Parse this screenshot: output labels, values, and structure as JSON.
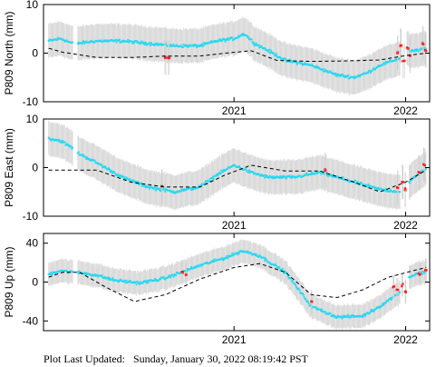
{
  "footer": {
    "label": "Plot Last Updated:",
    "timestamp": "Sunday, January 30, 2022 08:19:42 PST"
  },
  "colors": {
    "clean_points": "#29d8f0",
    "flagged_points": "#ff1a1a",
    "error_bars": "#cfcfcf",
    "model_line": "#000000"
  },
  "chart_data": [
    {
      "type": "scatter",
      "ylabel": "P809 North (mm)",
      "xlim": [
        2019.89,
        2022.14
      ],
      "ylim": [
        -10,
        10
      ],
      "yticks": [
        10,
        0,
        -10
      ],
      "xticks": [
        {
          "value": 2021.0,
          "label": "2021"
        },
        {
          "value": 2022.0,
          "label": "2022"
        }
      ],
      "grid": false,
      "error_bar_half_height": 3.5,
      "series": [
        {
          "kind": "points",
          "color": "clean",
          "segments": [
            {
              "x_start": 2019.92,
              "x_end": 2020.06,
              "x": [
                2019.92,
                2019.99,
                2020.06
              ],
              "y": [
                2.5,
                3.0,
                2.0
              ]
            },
            {
              "x_start": 2020.09,
              "x_end": 2021.97,
              "x": [
                2020.09,
                2020.2,
                2020.35,
                2020.5,
                2020.65,
                2020.8,
                2020.9,
                2021.0,
                2021.06,
                2021.12,
                2021.2,
                2021.3,
                2021.45,
                2021.6,
                2021.7,
                2021.78,
                2021.85,
                2021.97
              ],
              "y": [
                2.0,
                2.5,
                2.5,
                2.0,
                1.5,
                1.5,
                2.5,
                3.0,
                4.0,
                2.0,
                0.5,
                -1.5,
                -2.5,
                -4.5,
                -5.0,
                -4.0,
                -2.5,
                -1.0
              ]
            },
            {
              "x_start": 2022.02,
              "x_end": 2022.12,
              "x": [
                2022.02,
                2022.07,
                2022.12
              ],
              "y": [
                0.5,
                0.5,
                1.0
              ]
            }
          ]
        },
        {
          "kind": "points",
          "color": "flagged",
          "points": [
            {
              "x": 2020.6,
              "y": -0.8
            },
            {
              "x": 2020.62,
              "y": -1.0
            },
            {
              "x": 2021.95,
              "y": 0.0
            },
            {
              "x": 2021.97,
              "y": 1.5
            },
            {
              "x": 2021.99,
              "y": -1.5
            },
            {
              "x": 2022.01,
              "y": 1.0
            },
            {
              "x": 2022.03,
              "y": -0.5
            },
            {
              "x": 2022.1,
              "y": 2.0
            },
            {
              "x": 2022.12,
              "y": 0.5
            }
          ]
        },
        {
          "kind": "model",
          "style": "dashed",
          "x": [
            2019.92,
            2020.0,
            2020.2,
            2020.4,
            2020.6,
            2020.8,
            2020.95,
            2021.1,
            2021.25,
            2021.45,
            2021.65,
            2021.85,
            2022.0,
            2022.12
          ],
          "y": [
            1.0,
            0.2,
            -0.9,
            -0.9,
            -0.6,
            -0.6,
            0.0,
            0.5,
            -1.5,
            -1.7,
            -1.6,
            -1.4,
            -0.5,
            0.0
          ]
        }
      ]
    },
    {
      "type": "scatter",
      "ylabel": "P809 East (mm)",
      "xlim": [
        2019.89,
        2022.14
      ],
      "ylim": [
        -10,
        10
      ],
      "yticks": [
        10,
        0,
        -10
      ],
      "xticks": [
        {
          "value": 2021.0,
          "label": "2021"
        },
        {
          "value": 2022.0,
          "label": "2022"
        }
      ],
      "grid": false,
      "error_bar_half_height": 3.5,
      "series": [
        {
          "kind": "points",
          "color": "clean",
          "segments": [
            {
              "x_start": 2019.92,
              "x_end": 2020.06,
              "x": [
                2019.92,
                2019.99,
                2020.06
              ],
              "y": [
                6.0,
                5.5,
                4.0
              ]
            },
            {
              "x_start": 2020.09,
              "x_end": 2021.97,
              "x": [
                2020.09,
                2020.2,
                2020.35,
                2020.5,
                2020.65,
                2020.8,
                2020.9,
                2021.0,
                2021.1,
                2021.2,
                2021.35,
                2021.5,
                2021.6,
                2021.7,
                2021.85,
                2021.97
              ],
              "y": [
                3.0,
                1.0,
                -2.0,
                -4.0,
                -5.0,
                -4.0,
                -1.5,
                0.5,
                -1.0,
                -2.0,
                -2.0,
                -1.0,
                -2.0,
                -3.0,
                -4.5,
                -5.0
              ]
            },
            {
              "x_start": 2022.02,
              "x_end": 2022.12,
              "x": [
                2022.02,
                2022.07,
                2022.12
              ],
              "y": [
                -3.0,
                -1.5,
                0.0
              ]
            }
          ]
        },
        {
          "kind": "points",
          "color": "flagged",
          "points": [
            {
              "x": 2020.58,
              "y": -3.8
            },
            {
              "x": 2021.53,
              "y": -0.5
            },
            {
              "x": 2021.95,
              "y": -4.2
            },
            {
              "x": 2021.98,
              "y": -3.0
            },
            {
              "x": 2022.0,
              "y": -4.5
            },
            {
              "x": 2022.08,
              "y": -1.0
            },
            {
              "x": 2022.11,
              "y": 0.5
            }
          ]
        },
        {
          "kind": "model",
          "style": "dashed",
          "x": [
            2019.92,
            2020.05,
            2020.2,
            2020.4,
            2020.6,
            2020.8,
            2020.95,
            2021.1,
            2021.3,
            2021.5,
            2021.7,
            2021.85,
            2022.0,
            2022.12
          ],
          "y": [
            -0.5,
            -0.5,
            -0.5,
            -3.0,
            -4.0,
            -4.0,
            -1.5,
            0.5,
            -0.7,
            -0.7,
            -3.0,
            -5.0,
            -3.0,
            -0.5
          ]
        }
      ]
    },
    {
      "type": "scatter",
      "ylabel": "P809 Up (mm)",
      "xlim": [
        2019.89,
        2022.14
      ],
      "ylim": [
        -50,
        50
      ],
      "yticks": [
        40,
        0,
        -40
      ],
      "xticks": [
        {
          "value": 2021.0,
          "label": "2021"
        },
        {
          "value": 2022.0,
          "label": "2022"
        }
      ],
      "grid": false,
      "error_bar_half_height": 12,
      "series": [
        {
          "kind": "points",
          "color": "clean",
          "segments": [
            {
              "x_start": 2019.92,
              "x_end": 2020.06,
              "x": [
                2019.92,
                2019.99,
                2020.06
              ],
              "y": [
                8.0,
                12.0,
                10.0
              ]
            },
            {
              "x_start": 2020.09,
              "x_end": 2021.97,
              "x": [
                2020.09,
                2020.2,
                2020.3,
                2020.45,
                2020.6,
                2020.8,
                2020.95,
                2021.05,
                2021.15,
                2021.3,
                2021.45,
                2021.6,
                2021.75,
                2021.85,
                2021.97
              ],
              "y": [
                10.0,
                7.0,
                2.0,
                -1.0,
                4.0,
                17.0,
                25.0,
                32.0,
                27.0,
                10.0,
                -25.0,
                -36.0,
                -35.0,
                -25.0,
                -10.0
              ]
            },
            {
              "x_start": 2022.02,
              "x_end": 2022.12,
              "x": [
                2022.02,
                2022.07,
                2022.12
              ],
              "y": [
                5.0,
                9.0,
                10.0
              ]
            }
          ]
        },
        {
          "kind": "points",
          "color": "flagged",
          "points": [
            {
              "x": 2020.7,
              "y": 10.0
            },
            {
              "x": 2020.72,
              "y": 8.0
            },
            {
              "x": 2021.45,
              "y": -20.0
            },
            {
              "x": 2021.93,
              "y": -5.0
            },
            {
              "x": 2021.95,
              "y": -8.0
            },
            {
              "x": 2021.98,
              "y": -3.0
            },
            {
              "x": 2022.0,
              "y": -10.0
            },
            {
              "x": 2022.08,
              "y": 8.0
            },
            {
              "x": 2022.12,
              "y": 12.0
            }
          ]
        },
        {
          "kind": "model",
          "style": "dashed",
          "x": [
            2019.92,
            2020.0,
            2020.1,
            2020.25,
            2020.42,
            2020.6,
            2020.8,
            2021.0,
            2021.15,
            2021.3,
            2021.45,
            2021.6,
            2021.75,
            2021.9,
            2022.05,
            2022.12
          ],
          "y": [
            5.0,
            10.0,
            10.0,
            -5.0,
            -20.0,
            -13.0,
            3.0,
            15.0,
            19.0,
            10.0,
            -13.0,
            -16.0,
            -8.0,
            5.0,
            12.0,
            15.0
          ]
        }
      ]
    }
  ]
}
